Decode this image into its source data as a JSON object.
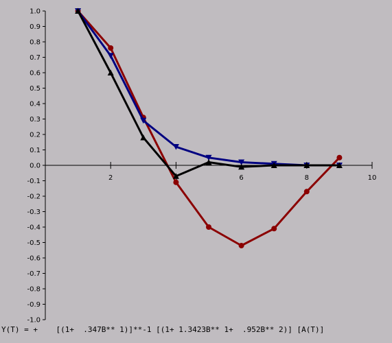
{
  "chart_data": {
    "type": "line",
    "title": "",
    "xlabel": "",
    "ylabel": "",
    "xlim": [
      0,
      10
    ],
    "ylim": [
      -1.0,
      1.0
    ],
    "x_ticks": [
      2,
      4,
      6,
      8,
      10
    ],
    "x_tick_labels": [
      "2",
      "4",
      "6",
      "8",
      "10"
    ],
    "y_ticks": [
      1.0,
      0.9,
      0.8,
      0.7,
      0.6,
      0.5,
      0.4,
      0.3,
      0.2,
      0.1,
      0.0,
      -0.1,
      -0.2,
      -0.3,
      -0.4,
      -0.5,
      -0.6,
      -0.7,
      -0.8,
      -0.9,
      -1.0
    ],
    "y_tick_labels": [
      "1.0",
      "0.9",
      "0.8",
      "0.7",
      "0.6",
      "0.5",
      "0.4",
      "0.3",
      "0.2",
      "0.1",
      "0.0",
      "-0.1",
      "-0.2",
      "-0.3",
      "-0.4",
      "-0.5",
      "-0.6",
      "-0.7",
      "-0.8",
      "-0.9",
      "-1.0"
    ],
    "grid": false,
    "series": [
      {
        "color": "#8b0000",
        "marker": "circle",
        "x": [
          1,
          2,
          3,
          4,
          5,
          6,
          7,
          8,
          9
        ],
        "y": [
          1.0,
          0.76,
          0.31,
          -0.11,
          -0.4,
          -0.52,
          -0.41,
          -0.17,
          0.05
        ]
      },
      {
        "color": "#000080",
        "marker": "triangle-down",
        "x": [
          1,
          2,
          3,
          4,
          5,
          6,
          7,
          8,
          9
        ],
        "y": [
          1.0,
          0.71,
          0.29,
          0.12,
          0.05,
          0.02,
          0.01,
          0.0,
          0.0
        ]
      },
      {
        "color": "#000000",
        "marker": "triangle-up",
        "x": [
          1,
          2,
          3,
          4,
          5,
          6,
          7,
          8,
          9
        ],
        "y": [
          1.0,
          0.6,
          0.18,
          -0.07,
          0.02,
          -0.01,
          0.0,
          0.0,
          0.0
        ]
      }
    ]
  },
  "formula": "Y(T) = +    [(1+  .347B** 1)]**-1 [(1+ 1.3423B** 1+  .952B** 2)] [A(T)]"
}
